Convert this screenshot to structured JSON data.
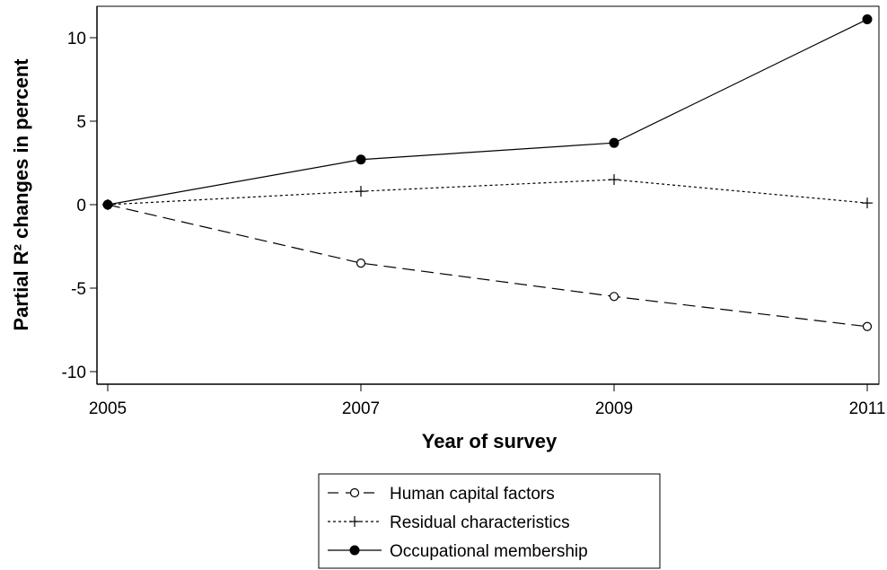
{
  "chart_data": {
    "type": "line",
    "xlabel": "Year of survey",
    "ylabel": "Partial R² changes in percent",
    "x": [
      2005,
      2007,
      2009,
      2011
    ],
    "xticks": [
      "2005",
      "2007",
      "2009",
      "2011"
    ],
    "xlim": [
      2005,
      2011
    ],
    "ylim": [
      -11,
      12
    ],
    "yticks": [
      -10,
      -5,
      0,
      5,
      10
    ],
    "ytick_labels": [
      "-10",
      "-5",
      "0",
      "5",
      "10"
    ],
    "grid": false,
    "legend_position": "bottom",
    "series": [
      {
        "name": "Human capital factors",
        "values": [
          0,
          -3.5,
          -5.5,
          -7.3
        ],
        "line_style": "dashed",
        "marker": "hollow-circle",
        "color": "#000000"
      },
      {
        "name": "Residual characteristics",
        "values": [
          0,
          0.8,
          1.5,
          0.1
        ],
        "line_style": "dotted",
        "marker": "plus",
        "color": "#000000"
      },
      {
        "name": "Occupational membership",
        "values": [
          0,
          2.7,
          3.7,
          11.1
        ],
        "line_style": "solid",
        "marker": "filled-circle",
        "color": "#000000"
      }
    ]
  }
}
